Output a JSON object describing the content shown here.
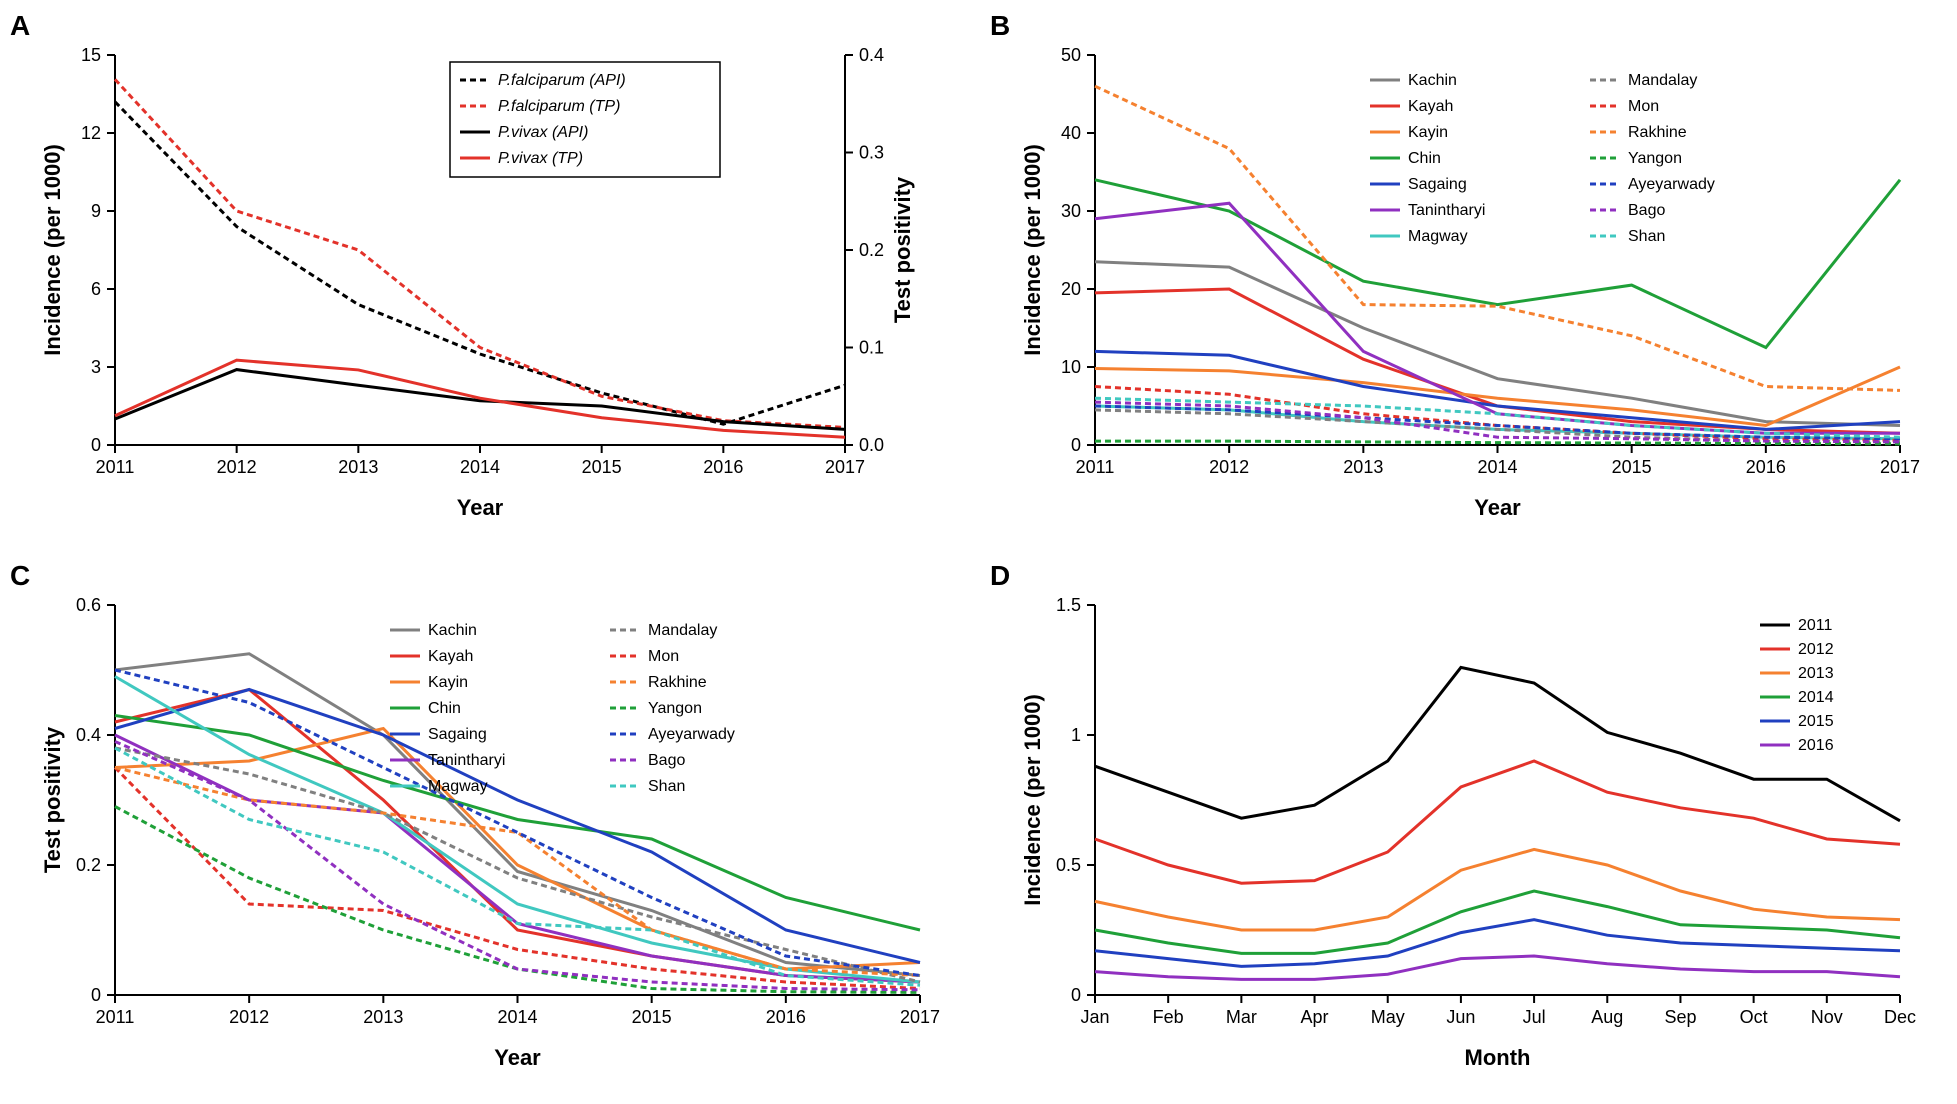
{
  "panelA": {
    "letter": "A",
    "type": "line",
    "xlabel": "Year",
    "ylabel_left": "Incidence (per 1000)",
    "ylabel_right": "Test positivity",
    "x_ticks": [
      2011,
      2012,
      2013,
      2014,
      2015,
      2016,
      2017
    ],
    "y_left_ticks": [
      0,
      3,
      6,
      9,
      12,
      15
    ],
    "y_right_ticks": [
      0.0,
      0.1,
      0.2,
      0.3,
      0.4
    ],
    "y_left_lim": [
      0,
      15
    ],
    "y_right_lim": [
      0,
      0.4
    ],
    "title_fontsize": 22,
    "tick_fontsize": 18,
    "legend_fontsize": 16,
    "line_width": 3,
    "background_color": "#ffffff",
    "series": [
      {
        "label": "P.falciparum (API)",
        "italic": true,
        "color": "#000000",
        "dash": "6,4",
        "axis": "left",
        "y": [
          13.2,
          8.4,
          5.4,
          3.5,
          2.0,
          0.8,
          2.3
        ]
      },
      {
        "label": "P.falciparum (TP)",
        "italic": true,
        "color": "#e3322a",
        "dash": "6,4",
        "axis": "right",
        "y": [
          0.375,
          0.24,
          0.2,
          0.1,
          0.05,
          0.025,
          0.018
        ]
      },
      {
        "label": "P.vivax (API)",
        "italic": true,
        "color": "#000000",
        "dash": "none",
        "axis": "left",
        "y": [
          1.0,
          2.9,
          2.3,
          1.7,
          1.5,
          0.9,
          0.6
        ]
      },
      {
        "label": "P.vivax (TP)",
        "italic": true,
        "color": "#e3322a",
        "dash": "none",
        "axis": "right",
        "y": [
          0.03,
          0.087,
          0.077,
          0.048,
          0.028,
          0.015,
          0.008
        ]
      }
    ]
  },
  "panelB": {
    "letter": "B",
    "type": "line",
    "xlabel": "Year",
    "ylabel": "Incidence (per 1000)",
    "x_ticks": [
      2011,
      2012,
      2013,
      2014,
      2015,
      2016,
      2017
    ],
    "y_ticks": [
      0,
      10,
      20,
      30,
      40,
      50
    ],
    "ylim": [
      0,
      50
    ],
    "title_fontsize": 22,
    "tick_fontsize": 18,
    "legend_fontsize": 16,
    "line_width": 3,
    "background_color": "#ffffff",
    "series": [
      {
        "label": "Kachin",
        "color": "#808080",
        "dash": "none",
        "y": [
          23.5,
          22.8,
          15,
          8.5,
          6,
          3,
          2.5
        ]
      },
      {
        "label": "Kayah",
        "color": "#e3322a",
        "dash": "none",
        "y": [
          19.5,
          20,
          11,
          5,
          3,
          2,
          1.5
        ]
      },
      {
        "label": "Kayin",
        "color": "#f58130",
        "dash": "none",
        "y": [
          9.8,
          9.5,
          8,
          6,
          4.5,
          2.5,
          10
        ]
      },
      {
        "label": "Chin",
        "color": "#1fa038",
        "dash": "none",
        "y": [
          34,
          30,
          21,
          18,
          20.5,
          12.5,
          34
        ]
      },
      {
        "label": "Sagaing",
        "color": "#2040c0",
        "dash": "none",
        "y": [
          12,
          11.5,
          7.5,
          5,
          3.5,
          2,
          3
        ]
      },
      {
        "label": "Tanintharyi",
        "color": "#9030c0",
        "dash": "none",
        "y": [
          29,
          31,
          12,
          4,
          2.5,
          1.5,
          1.5
        ]
      },
      {
        "label": "Magway",
        "color": "#40c8c0",
        "dash": "none",
        "y": [
          5,
          4.5,
          3,
          2,
          1.5,
          1,
          0.8
        ]
      },
      {
        "label": "Mandalay",
        "color": "#808080",
        "dash": "6,4",
        "y": [
          4.5,
          4,
          3,
          2,
          1,
          0.5,
          0.4
        ]
      },
      {
        "label": "Mon",
        "color": "#e3322a",
        "dash": "6,4",
        "y": [
          7.5,
          6.5,
          4,
          2.5,
          1.5,
          0.8,
          0.6
        ]
      },
      {
        "label": "Rakhine",
        "color": "#f58130",
        "dash": "6,4",
        "y": [
          46,
          38,
          18,
          17.8,
          14,
          7.5,
          7
        ]
      },
      {
        "label": "Yangon",
        "color": "#1fa038",
        "dash": "6,4",
        "y": [
          0.5,
          0.5,
          0.4,
          0.3,
          0.25,
          0.2,
          0.15
        ]
      },
      {
        "label": "Ayeyarwady",
        "color": "#2040c0",
        "dash": "6,4",
        "y": [
          5,
          4.5,
          3.5,
          2.5,
          1.5,
          1,
          0.8
        ]
      },
      {
        "label": "Bago",
        "color": "#9030c0",
        "dash": "6,4",
        "y": [
          5.5,
          5,
          3.5,
          1,
          0.8,
          0.5,
          0.4
        ]
      },
      {
        "label": "Shan",
        "color": "#40c8c0",
        "dash": "6,4",
        "y": [
          6,
          5.5,
          5,
          4,
          2.5,
          1.5,
          1
        ]
      }
    ]
  },
  "panelC": {
    "letter": "C",
    "type": "line",
    "xlabel": "Year",
    "ylabel": "Test positivity",
    "x_ticks": [
      2011,
      2012,
      2013,
      2014,
      2015,
      2016,
      2017
    ],
    "y_ticks": [
      0.0,
      0.2,
      0.4,
      0.6
    ],
    "ylim": [
      0,
      0.6
    ],
    "title_fontsize": 22,
    "tick_fontsize": 18,
    "legend_fontsize": 16,
    "line_width": 3,
    "background_color": "#ffffff",
    "series": [
      {
        "label": "Kachin",
        "color": "#808080",
        "dash": "none",
        "y": [
          0.5,
          0.525,
          0.4,
          0.19,
          0.13,
          0.05,
          0.03
        ]
      },
      {
        "label": "Kayah",
        "color": "#e3322a",
        "dash": "none",
        "y": [
          0.42,
          0.47,
          0.3,
          0.1,
          0.06,
          0.03,
          0.02
        ]
      },
      {
        "label": "Kayin",
        "color": "#f58130",
        "dash": "none",
        "y": [
          0.35,
          0.36,
          0.41,
          0.2,
          0.1,
          0.04,
          0.05
        ]
      },
      {
        "label": "Chin",
        "color": "#1fa038",
        "dash": "none",
        "y": [
          0.43,
          0.4,
          0.33,
          0.27,
          0.24,
          0.15,
          0.1
        ]
      },
      {
        "label": "Sagaing",
        "color": "#2040c0",
        "dash": "none",
        "y": [
          0.41,
          0.47,
          0.4,
          0.3,
          0.22,
          0.1,
          0.05
        ]
      },
      {
        "label": "Tanintharyi",
        "color": "#9030c0",
        "dash": "none",
        "y": [
          0.4,
          0.3,
          0.28,
          0.11,
          0.06,
          0.03,
          0.02
        ]
      },
      {
        "label": "Magway",
        "color": "#40c8c0",
        "dash": "none",
        "y": [
          0.49,
          0.37,
          0.28,
          0.14,
          0.08,
          0.04,
          0.02
        ]
      },
      {
        "label": "Mandalay",
        "color": "#808080",
        "dash": "6,4",
        "y": [
          0.38,
          0.34,
          0.28,
          0.18,
          0.12,
          0.07,
          0.02
        ]
      },
      {
        "label": "Mon",
        "color": "#e3322a",
        "dash": "6,4",
        "y": [
          0.35,
          0.14,
          0.13,
          0.07,
          0.04,
          0.02,
          0.01
        ]
      },
      {
        "label": "Rakhine",
        "color": "#f58130",
        "dash": "6,4",
        "y": [
          0.35,
          0.3,
          0.28,
          0.25,
          0.1,
          0.04,
          0.03
        ]
      },
      {
        "label": "Yangon",
        "color": "#1fa038",
        "dash": "6,4",
        "y": [
          0.29,
          0.18,
          0.1,
          0.04,
          0.01,
          0.005,
          0.004
        ]
      },
      {
        "label": "Ayeyarwady",
        "color": "#2040c0",
        "dash": "6,4",
        "y": [
          0.5,
          0.45,
          0.35,
          0.25,
          0.15,
          0.06,
          0.03
        ]
      },
      {
        "label": "Bago",
        "color": "#9030c0",
        "dash": "6,4",
        "y": [
          0.39,
          0.3,
          0.14,
          0.04,
          0.02,
          0.01,
          0.008
        ]
      },
      {
        "label": "Shan",
        "color": "#40c8c0",
        "dash": "6,4",
        "y": [
          0.38,
          0.27,
          0.22,
          0.11,
          0.1,
          0.03,
          0.015
        ]
      }
    ]
  },
  "panelD": {
    "letter": "D",
    "type": "line",
    "xlabel": "Month",
    "ylabel": "Incidence (per 1000)",
    "x_ticks": [
      "Jan",
      "Feb",
      "Mar",
      "Apr",
      "May",
      "Jun",
      "Jul",
      "Aug",
      "Sep",
      "Oct",
      "Nov",
      "Dec"
    ],
    "y_ticks": [
      0.0,
      0.5,
      1.0,
      1.5
    ],
    "ylim": [
      0,
      1.5
    ],
    "title_fontsize": 22,
    "tick_fontsize": 18,
    "legend_fontsize": 16,
    "line_width": 3,
    "background_color": "#ffffff",
    "series": [
      {
        "label": "2011",
        "color": "#000000",
        "dash": "none",
        "y": [
          0.88,
          0.78,
          0.68,
          0.73,
          0.9,
          1.26,
          1.2,
          1.01,
          0.93,
          0.83,
          0.83,
          0.67
        ]
      },
      {
        "label": "2012",
        "color": "#e3322a",
        "dash": "none",
        "y": [
          0.6,
          0.5,
          0.43,
          0.44,
          0.55,
          0.8,
          0.9,
          0.78,
          0.72,
          0.68,
          0.6,
          0.58
        ]
      },
      {
        "label": "2013",
        "color": "#f58130",
        "dash": "none",
        "y": [
          0.36,
          0.3,
          0.25,
          0.25,
          0.3,
          0.48,
          0.56,
          0.5,
          0.4,
          0.33,
          0.3,
          0.29
        ]
      },
      {
        "label": "2014",
        "color": "#1fa038",
        "dash": "none",
        "y": [
          0.25,
          0.2,
          0.16,
          0.16,
          0.2,
          0.32,
          0.4,
          0.34,
          0.27,
          0.26,
          0.25,
          0.22
        ]
      },
      {
        "label": "2015",
        "color": "#2040c0",
        "dash": "none",
        "y": [
          0.17,
          0.14,
          0.11,
          0.12,
          0.15,
          0.24,
          0.29,
          0.23,
          0.2,
          0.19,
          0.18,
          0.17
        ]
      },
      {
        "label": "2016",
        "color": "#9030c0",
        "dash": "none",
        "y": [
          0.09,
          0.07,
          0.06,
          0.06,
          0.08,
          0.14,
          0.15,
          0.12,
          0.1,
          0.09,
          0.09,
          0.07
        ]
      }
    ]
  }
}
